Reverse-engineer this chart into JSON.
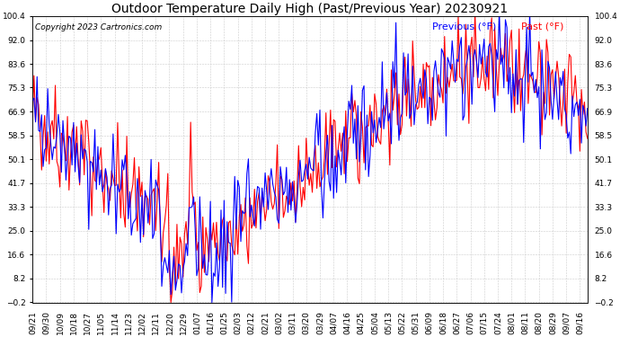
{
  "title": "Outdoor Temperature Daily High (Past/Previous Year) 20230921",
  "copyright": "Copyright 2023 Cartronics.com",
  "legend_previous": "Previous (°F)",
  "legend_past": "Past (°F)",
  "color_previous": "blue",
  "color_past": "red",
  "background_color": "#ffffff",
  "grid_color": "#cccccc",
  "yticks": [
    -0.2,
    8.2,
    16.6,
    25.0,
    33.3,
    41.7,
    50.1,
    58.5,
    66.9,
    75.3,
    83.6,
    92.0,
    100.4
  ],
  "ylim": [
    -0.2,
    100.4
  ],
  "title_fontsize": 10,
  "tick_fontsize": 6.5,
  "legend_fontsize": 8,
  "copyright_fontsize": 6.5,
  "linewidth": 0.8,
  "xtick_labels": [
    "09/21",
    "09/30",
    "10/09",
    "10/18",
    "10/27",
    "11/05",
    "11/14",
    "11/23",
    "12/02",
    "12/11",
    "12/20",
    "12/29",
    "01/07",
    "01/16",
    "01/25",
    "02/03",
    "02/12",
    "02/21",
    "03/02",
    "03/11",
    "03/20",
    "03/29",
    "04/07",
    "04/16",
    "04/25",
    "05/04",
    "05/13",
    "05/22",
    "05/31",
    "06/09",
    "06/18",
    "06/27",
    "07/06",
    "07/15",
    "07/24",
    "08/01",
    "08/11",
    "08/20",
    "08/29",
    "09/07",
    "09/16"
  ]
}
